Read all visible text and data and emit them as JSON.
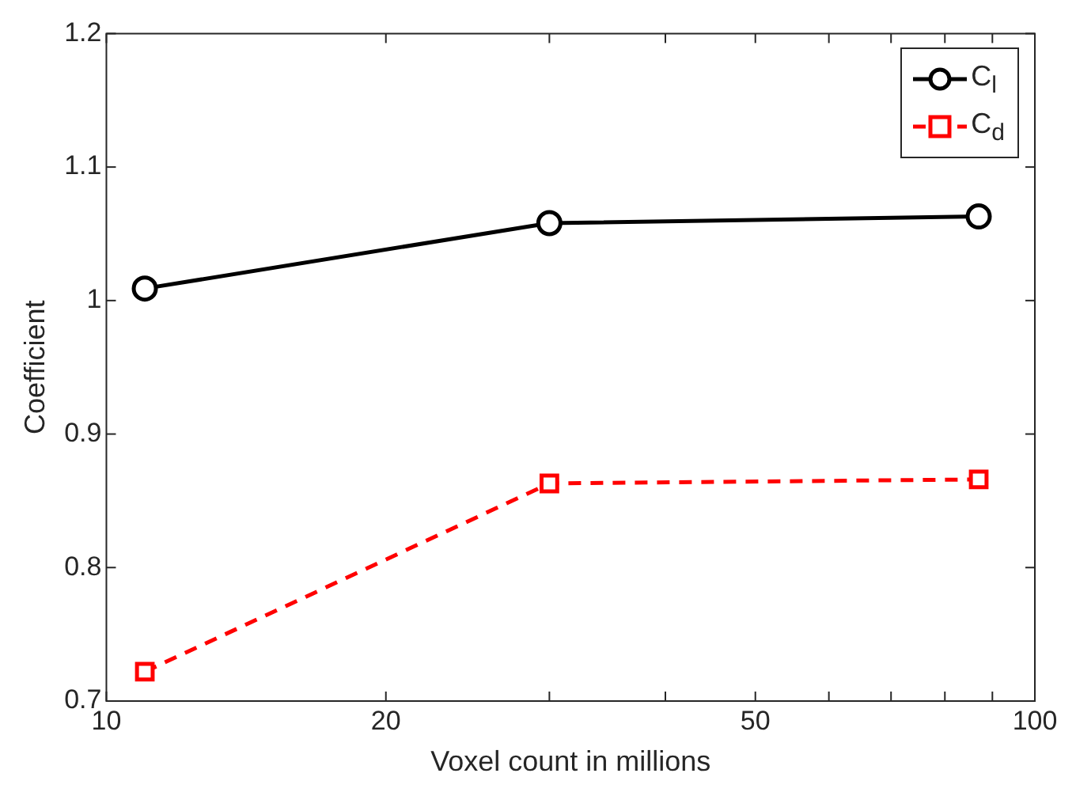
{
  "chart_data": {
    "type": "line",
    "xlabel": "Voxel count in millions",
    "ylabel": "Coefficient",
    "log": "x",
    "x": [
      11,
      30,
      87
    ],
    "xlim": [
      10,
      100
    ],
    "xticks": [
      10,
      20,
      {
        "value": 30,
        "label": null
      },
      {
        "value": 40,
        "label": null
      },
      50,
      {
        "value": 60,
        "label": null
      },
      {
        "value": 70,
        "label": null
      },
      {
        "value": 80,
        "label": null
      },
      {
        "value": 90,
        "label": null
      },
      100
    ],
    "ylim": [
      0.7,
      1.2
    ],
    "yticks": [
      0.7,
      0.8,
      0.9,
      1,
      1.1,
      1.2
    ],
    "grid": false,
    "legend": "top right",
    "series": [
      {
        "name": "C$_{l}$",
        "color": "#000000",
        "values": [
          1.009,
          1.058,
          1.063
        ],
        "marker": "circle",
        "line_style": "solid"
      },
      {
        "name": "C$_{d}$",
        "color": "#ff0000",
        "values": [
          0.722,
          0.863,
          0.866
        ],
        "marker": "square",
        "line_style": "dashed"
      }
    ]
  }
}
